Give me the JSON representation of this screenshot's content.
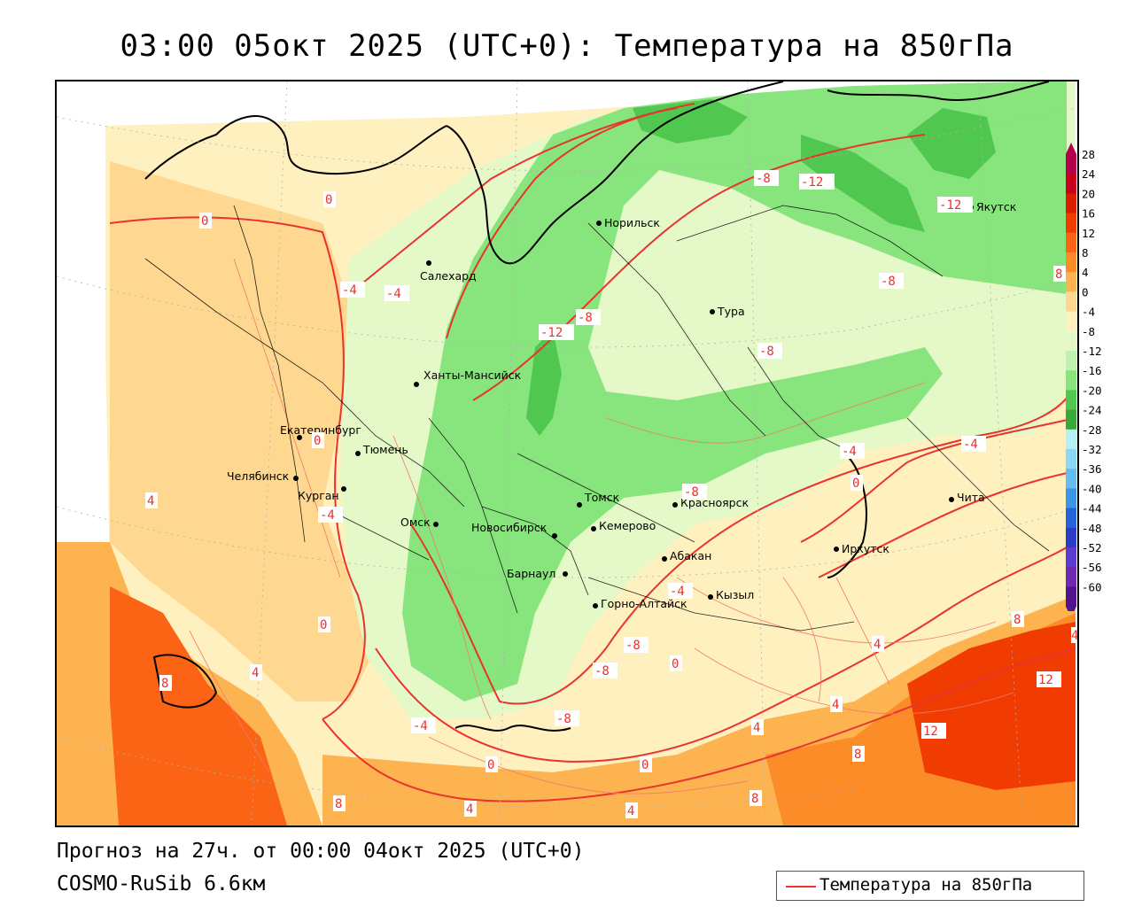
{
  "title": "03:00 05окт 2025 (UTC+0): Температура на 850гПа",
  "footer": {
    "forecast": "Прогноз на 27ч. от 00:00 04окт 2025 (UTC+0)",
    "model": "COSMO-RuSib 6.6км"
  },
  "legend": {
    "label": "Температура на 850гПа",
    "line_color": "#e8332e"
  },
  "colorbar": {
    "ticks": [
      "28",
      "24",
      "20",
      "16",
      "12",
      "8",
      "4",
      "0",
      "-4",
      "-8",
      "-12",
      "-16",
      "-20",
      "-24",
      "-28",
      "-32",
      "-36",
      "-40",
      "-44",
      "-48",
      "-52",
      "-56",
      "-60"
    ],
    "colors": [
      "#b4004b",
      "#c8001e",
      "#dc1e00",
      "#f03c00",
      "#fa6414",
      "#fc8c28",
      "#fdb450",
      "#fed890",
      "#fff0c0",
      "#e4f8c8",
      "#c0f2b0",
      "#88e47c",
      "#50c850",
      "#38a838",
      "#b4f0f4",
      "#8cd8f4",
      "#64bcf0",
      "#3c96e8",
      "#2464d8",
      "#2a3cc8",
      "#5a3cd0",
      "#6e28b4",
      "#50148c"
    ]
  },
  "cities": [
    {
      "name": "Норильск"
    },
    {
      "name": "Якутск"
    },
    {
      "name": "Салехард"
    },
    {
      "name": "Тура"
    },
    {
      "name": "Ханты-Мансийск"
    },
    {
      "name": "Екатеринбург"
    },
    {
      "name": "Тюмень"
    },
    {
      "name": "Челябинск"
    },
    {
      "name": "Курган"
    },
    {
      "name": "Омск"
    },
    {
      "name": "Томск"
    },
    {
      "name": "Красноярск"
    },
    {
      "name": "Новосибирск"
    },
    {
      "name": "Кемерово"
    },
    {
      "name": "Абакан"
    },
    {
      "name": "Иркутск"
    },
    {
      "name": "Чита"
    },
    {
      "name": "Барнаул"
    },
    {
      "name": "Кызыл"
    },
    {
      "name": "Горно-Алтайск"
    }
  ],
  "contour_labels": [
    "0",
    "0",
    "-4",
    "-4",
    "-8",
    "-12",
    "-8",
    "-12",
    "-8",
    "-12",
    "-8",
    "-8",
    "-4",
    "0",
    "-4",
    "0",
    "4",
    "8",
    "4",
    "0",
    "-4",
    "-8",
    "-8",
    "0",
    "-4",
    "-8",
    "-4",
    "0",
    "0",
    "4",
    "8",
    "4",
    "4",
    "8",
    "12",
    "12",
    "8",
    "4",
    "8",
    "4",
    "4",
    "8"
  ]
}
